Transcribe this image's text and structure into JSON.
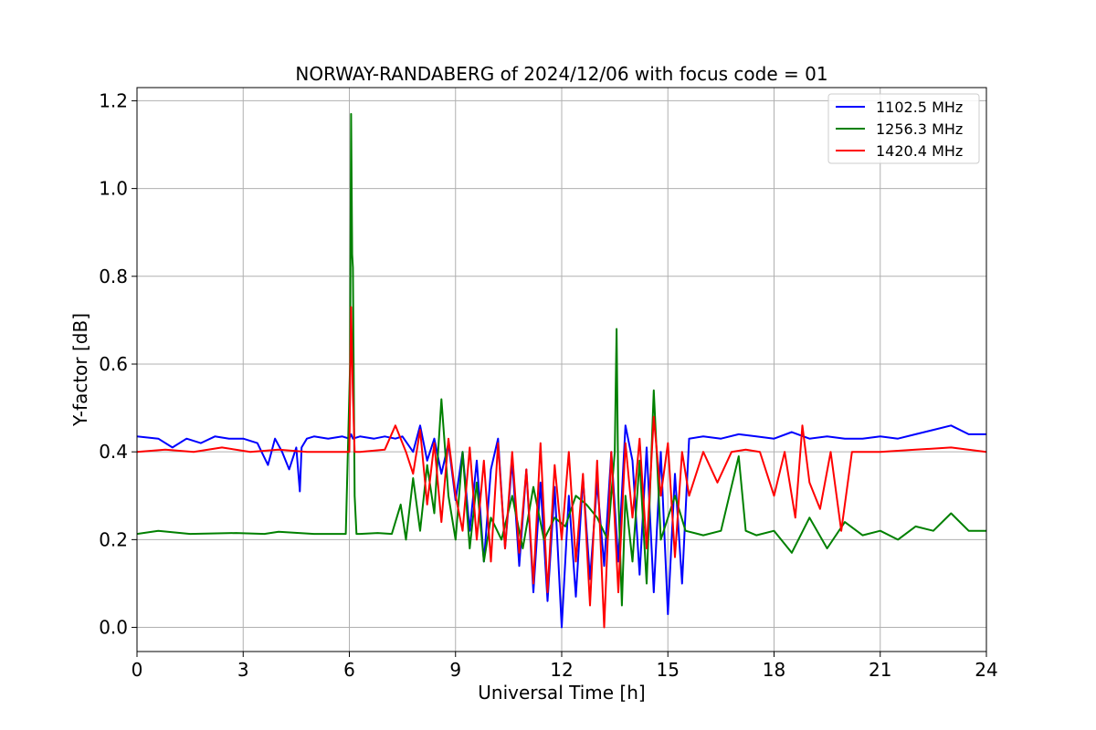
{
  "chart_data": {
    "type": "line",
    "title": "NORWAY-RANDABERG of 2024/12/06 with focus code = 01",
    "xlabel": "Universal Time [h]",
    "ylabel": "Y-factor [dB]",
    "xlim": [
      0,
      24
    ],
    "ylim": [
      -0.055,
      1.23
    ],
    "xticks": [
      0,
      3,
      6,
      9,
      12,
      15,
      18,
      21,
      24
    ],
    "yticks": [
      0.0,
      0.2,
      0.4,
      0.6,
      0.8,
      1.0,
      1.2
    ],
    "ytick_labels": [
      "0.0",
      "0.2",
      "0.4",
      "0.6",
      "0.8",
      "1.0",
      "1.2"
    ],
    "grid": true,
    "legend_position": "top-right",
    "series": [
      {
        "name": "1102.5 MHz",
        "color": "#0000ff",
        "x": [
          0,
          0.6,
          1.0,
          1.4,
          1.8,
          2.2,
          2.6,
          3.0,
          3.4,
          3.7,
          3.9,
          4.1,
          4.3,
          4.5,
          4.6,
          4.65,
          4.8,
          5.0,
          5.4,
          5.8,
          6.0,
          6.05,
          6.1,
          6.3,
          6.7,
          7.0,
          7.3,
          7.5,
          7.8,
          8.0,
          8.2,
          8.4,
          8.6,
          8.8,
          9.0,
          9.2,
          9.4,
          9.6,
          9.8,
          10.0,
          10.2,
          10.4,
          10.6,
          10.8,
          11.0,
          11.2,
          11.4,
          11.6,
          11.8,
          12.0,
          12.2,
          12.4,
          12.6,
          12.8,
          13.0,
          13.2,
          13.4,
          13.6,
          13.8,
          14.0,
          14.2,
          14.4,
          14.6,
          14.8,
          15.0,
          15.2,
          15.4,
          15.6,
          16.0,
          16.5,
          17.0,
          17.5,
          18.0,
          18.5,
          19.0,
          19.5,
          20.0,
          20.5,
          21.0,
          21.5,
          22.0,
          22.5,
          23.0,
          23.5,
          24.0
        ],
        "y": [
          0.435,
          0.43,
          0.41,
          0.43,
          0.42,
          0.435,
          0.43,
          0.43,
          0.42,
          0.37,
          0.43,
          0.4,
          0.36,
          0.41,
          0.31,
          0.41,
          0.43,
          0.435,
          0.43,
          0.435,
          0.43,
          0.44,
          0.43,
          0.435,
          0.43,
          0.435,
          0.43,
          0.435,
          0.4,
          0.46,
          0.38,
          0.43,
          0.35,
          0.42,
          0.29,
          0.4,
          0.22,
          0.38,
          0.15,
          0.36,
          0.43,
          0.18,
          0.38,
          0.14,
          0.36,
          0.08,
          0.33,
          0.06,
          0.32,
          0.0,
          0.3,
          0.07,
          0.34,
          0.11,
          0.33,
          0.14,
          0.4,
          0.15,
          0.46,
          0.38,
          0.12,
          0.41,
          0.08,
          0.4,
          0.03,
          0.35,
          0.1,
          0.43,
          0.435,
          0.43,
          0.44,
          0.435,
          0.43,
          0.445,
          0.43,
          0.435,
          0.43,
          0.43,
          0.435,
          0.43,
          0.44,
          0.45,
          0.46,
          0.44,
          0.44
        ]
      },
      {
        "name": "1256.3 MHz",
        "color": "#008000",
        "x": [
          0,
          0.6,
          1.5,
          2.8,
          3.6,
          4.0,
          5.0,
          5.9,
          6.02,
          6.05,
          6.08,
          6.1,
          6.15,
          6.2,
          6.3,
          6.8,
          7.2,
          7.45,
          7.6,
          7.8,
          8.0,
          8.2,
          8.4,
          8.6,
          8.8,
          9.0,
          9.2,
          9.4,
          9.6,
          9.8,
          10.0,
          10.3,
          10.6,
          10.9,
          11.2,
          11.5,
          11.8,
          12.1,
          12.4,
          12.7,
          13.0,
          13.3,
          13.5,
          13.55,
          13.6,
          13.7,
          13.8,
          14.0,
          14.2,
          14.4,
          14.6,
          14.8,
          15.0,
          15.2,
          15.5,
          16.0,
          16.5,
          17.0,
          17.2,
          17.5,
          18.0,
          18.5,
          19.0,
          19.5,
          20.0,
          20.5,
          21.0,
          21.5,
          22.0,
          22.5,
          23.0,
          23.5,
          24.0
        ],
        "y": [
          0.213,
          0.22,
          0.213,
          0.215,
          0.213,
          0.218,
          0.213,
          0.213,
          0.6,
          1.17,
          0.85,
          0.82,
          0.3,
          0.213,
          0.213,
          0.215,
          0.213,
          0.28,
          0.2,
          0.34,
          0.22,
          0.37,
          0.26,
          0.52,
          0.3,
          0.2,
          0.4,
          0.18,
          0.33,
          0.15,
          0.25,
          0.2,
          0.3,
          0.18,
          0.32,
          0.2,
          0.25,
          0.23,
          0.3,
          0.28,
          0.25,
          0.2,
          0.4,
          0.68,
          0.3,
          0.05,
          0.3,
          0.15,
          0.38,
          0.1,
          0.54,
          0.2,
          0.25,
          0.3,
          0.22,
          0.21,
          0.22,
          0.39,
          0.22,
          0.21,
          0.22,
          0.17,
          0.25,
          0.18,
          0.24,
          0.21,
          0.22,
          0.2,
          0.23,
          0.22,
          0.26,
          0.22,
          0.22
        ]
      },
      {
        "name": "1420.4 MHz",
        "color": "#ff0000",
        "x": [
          0,
          0.8,
          1.6,
          2.4,
          3.2,
          4.0,
          4.8,
          5.6,
          6.0,
          6.05,
          6.1,
          6.15,
          6.3,
          7.0,
          7.3,
          7.6,
          7.8,
          8.0,
          8.2,
          8.4,
          8.6,
          8.8,
          9.0,
          9.2,
          9.4,
          9.6,
          9.8,
          10.0,
          10.2,
          10.4,
          10.6,
          10.8,
          11.0,
          11.2,
          11.4,
          11.6,
          11.8,
          12.0,
          12.2,
          12.4,
          12.6,
          12.8,
          13.0,
          13.2,
          13.4,
          13.6,
          13.8,
          14.0,
          14.2,
          14.4,
          14.6,
          14.8,
          15.0,
          15.2,
          15.4,
          15.6,
          16.0,
          16.4,
          16.8,
          17.2,
          17.6,
          18.0,
          18.3,
          18.6,
          18.8,
          19.0,
          19.3,
          19.6,
          19.9,
          20.2,
          20.5,
          21.0,
          22.0,
          23.0,
          24.0
        ],
        "y": [
          0.4,
          0.405,
          0.4,
          0.41,
          0.4,
          0.405,
          0.4,
          0.4,
          0.4,
          0.73,
          0.53,
          0.4,
          0.4,
          0.405,
          0.46,
          0.4,
          0.35,
          0.45,
          0.28,
          0.42,
          0.24,
          0.43,
          0.3,
          0.22,
          0.41,
          0.2,
          0.38,
          0.15,
          0.42,
          0.18,
          0.4,
          0.17,
          0.36,
          0.1,
          0.42,
          0.08,
          0.37,
          0.2,
          0.4,
          0.15,
          0.35,
          0.05,
          0.38,
          0.0,
          0.4,
          0.08,
          0.42,
          0.25,
          0.43,
          0.18,
          0.48,
          0.3,
          0.42,
          0.16,
          0.4,
          0.3,
          0.4,
          0.33,
          0.4,
          0.405,
          0.4,
          0.3,
          0.4,
          0.25,
          0.46,
          0.33,
          0.27,
          0.4,
          0.22,
          0.4,
          0.4,
          0.4,
          0.405,
          0.41,
          0.4
        ]
      }
    ]
  }
}
